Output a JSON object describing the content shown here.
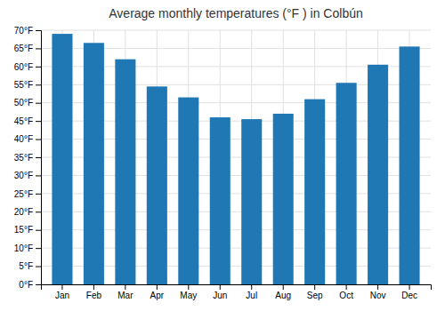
{
  "chart_data": {
    "type": "bar",
    "title": "Average monthly temperatures (°F ) in Colbún",
    "categories": [
      "Jan",
      "Feb",
      "Mar",
      "Apr",
      "May",
      "Jun",
      "Jul",
      "Aug",
      "Sep",
      "Oct",
      "Nov",
      "Dec"
    ],
    "values": [
      69,
      66.5,
      62,
      54.5,
      51.5,
      46,
      45.5,
      47,
      51,
      55.5,
      60.5,
      65.5
    ],
    "ylim": [
      0,
      70
    ],
    "yticks": [
      {
        "value": 0,
        "label": "0°F"
      },
      {
        "value": 5,
        "label": "5°F"
      },
      {
        "value": 10,
        "label": "10°F"
      },
      {
        "value": 15,
        "label": "15°F"
      },
      {
        "value": 20,
        "label": "20°F"
      },
      {
        "value": 25,
        "label": "25°F"
      },
      {
        "value": 30,
        "label": "30°F"
      },
      {
        "value": 35,
        "label": "35°F"
      },
      {
        "value": 40,
        "label": "40°F"
      },
      {
        "value": 45,
        "label": "45°F"
      },
      {
        "value": 50,
        "label": "50°F"
      },
      {
        "value": 55,
        "label": "55°F"
      },
      {
        "value": 60,
        "label": "60°F"
      },
      {
        "value": 65,
        "label": "65°F"
      },
      {
        "value": 70,
        "label": "70°F"
      }
    ],
    "grid": true
  }
}
